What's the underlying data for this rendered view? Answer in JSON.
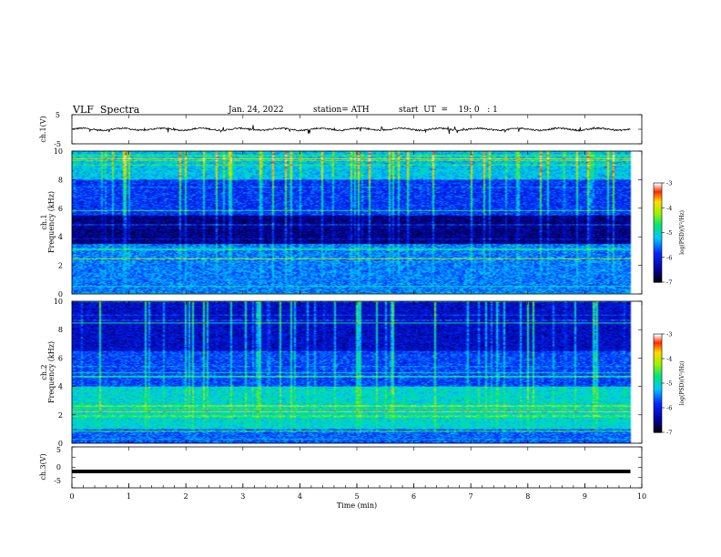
{
  "header": {
    "title": "VLF  Spectra",
    "date": "Jan. 24, 2022",
    "station": "station= ATH",
    "start": "start  UT  =    19: 0   : 1"
  },
  "chart_data": [
    {
      "type": "line",
      "name": "ch1-waveform",
      "ylabel": "ch.1(V)",
      "ylim": [
        -5,
        5
      ],
      "yticks": [
        "5",
        "-5"
      ],
      "xlim": [
        0,
        10
      ],
      "data_end_min": 9.8,
      "description_level": 0,
      "color": "#000000"
    },
    {
      "type": "heatmap",
      "name": "ch1-spectrogram",
      "ylabel": "ch.1\nFrequency (kHz)",
      "ylim": [
        0,
        10
      ],
      "yticks": [
        "0",
        "2",
        "4",
        "6",
        "8",
        "10"
      ],
      "xlim": [
        0,
        10
      ],
      "data_end_min": 9.8,
      "colorbar": {
        "label": "log(PSD)(V²/Hz)",
        "range": [
          -7,
          -3
        ],
        "ticks": [
          "-3",
          "-4",
          "-5",
          "-6",
          "-7"
        ]
      }
    },
    {
      "type": "heatmap",
      "name": "ch2-spectrogram",
      "ylabel": "ch.2\nFrequency (kHz)",
      "ylim": [
        0,
        10
      ],
      "yticks": [
        "0",
        "2",
        "4",
        "6",
        "8",
        "10"
      ],
      "xlim": [
        0,
        10
      ],
      "data_end_min": 9.8,
      "colorbar": {
        "label": "log(PSD)(V²/Hz)",
        "range": [
          -7,
          -3
        ],
        "ticks": [
          "-3",
          "-4",
          "-5",
          "-6",
          "-7"
        ]
      }
    },
    {
      "type": "line",
      "name": "ch3-waveform",
      "ylabel": "ch.3(V)",
      "ylim": [
        -5,
        5
      ],
      "yticks": [
        "5",
        "0",
        "-5"
      ],
      "xlim": [
        0,
        10
      ],
      "data_end_min": 9.8,
      "constant_value": -1,
      "color": "#000000"
    }
  ],
  "xaxis": {
    "label": "Time  (min)",
    "ticks": [
      "0",
      "1",
      "2",
      "3",
      "4",
      "5",
      "6",
      "7",
      "8",
      "9",
      "10"
    ]
  }
}
